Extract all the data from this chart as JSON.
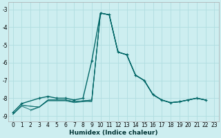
{
  "xlabel": "Humidex (Indice chaleur)",
  "bg_color": "#cdeef0",
  "grid_color": "#b0dde0",
  "line_color": "#006666",
  "xlim": [
    -0.5,
    23.5
  ],
  "ylim": [
    -9.3,
    -2.6
  ],
  "yticks": [
    -9,
    -8,
    -7,
    -6,
    -5,
    -4,
    -3
  ],
  "xticks": [
    0,
    1,
    2,
    3,
    4,
    5,
    6,
    7,
    8,
    9,
    10,
    11,
    12,
    13,
    14,
    15,
    16,
    17,
    18,
    19,
    20,
    21,
    22,
    23
  ],
  "series": [
    {
      "x": [
        0,
        1,
        3,
        4,
        5,
        6,
        7,
        8,
        9,
        10,
        11,
        12,
        13,
        14,
        15,
        16,
        17,
        18,
        19,
        20,
        21,
        22
      ],
      "y": [
        -8.8,
        -8.3,
        -8.0,
        -7.9,
        -8.0,
        -8.0,
        -8.1,
        -8.0,
        -5.9,
        -3.2,
        -3.3,
        -5.4,
        -5.55,
        -6.7,
        -7.0,
        -7.8,
        -8.1,
        -8.25,
        -8.2,
        -8.1,
        -8.0,
        -8.1
      ],
      "marker": true,
      "lw": 1.0
    },
    {
      "x": [
        0,
        1,
        3,
        4,
        5,
        6,
        7,
        8,
        9,
        10,
        11,
        12,
        13,
        14,
        15,
        16,
        17,
        18,
        19,
        20,
        21,
        22
      ],
      "y": [
        -8.9,
        -8.4,
        -8.5,
        -8.1,
        -8.1,
        -8.1,
        -8.2,
        -8.15,
        -8.1,
        -3.2,
        -3.3,
        -5.4,
        -5.55,
        -6.7,
        -7.0,
        -7.8,
        -8.1,
        -8.25,
        -8.2,
        -8.1,
        -8.0,
        -8.1
      ],
      "marker": false,
      "lw": 0.7
    },
    {
      "x": [
        2,
        3,
        4,
        5,
        6,
        7,
        8,
        9,
        10,
        11,
        12,
        13,
        14,
        15,
        16,
        17,
        18,
        19,
        20,
        21,
        22
      ],
      "y": [
        -8.7,
        -8.5,
        -8.1,
        -8.1,
        -8.1,
        -8.2,
        -8.15,
        -8.1,
        -3.2,
        -3.3,
        -5.4,
        -5.55,
        -6.7,
        -7.0,
        -7.8,
        -8.1,
        -8.25,
        -8.2,
        -8.1,
        -8.0,
        -8.1
      ],
      "marker": false,
      "lw": 0.7
    },
    {
      "x": [
        0,
        1,
        3,
        4,
        5,
        6,
        7,
        8,
        9,
        10,
        11,
        12,
        13,
        14,
        15,
        16,
        17,
        18,
        19,
        20,
        21,
        22
      ],
      "y": [
        -8.9,
        -8.4,
        -8.5,
        -8.1,
        -8.1,
        -8.1,
        -8.2,
        -8.15,
        -8.2,
        -3.2,
        -3.3,
        -5.4,
        -5.55,
        -6.7,
        -7.0,
        -7.8,
        -8.1,
        -8.25,
        -8.2,
        -8.1,
        -8.0,
        -8.1
      ],
      "marker": false,
      "lw": 0.7
    },
    {
      "x": [
        0,
        1,
        2,
        3,
        4,
        5,
        6,
        7,
        8,
        9,
        10,
        11,
        12,
        13,
        14,
        15,
        16,
        17,
        18,
        19,
        20,
        21,
        22
      ],
      "y": [
        -8.9,
        -8.45,
        -8.65,
        -8.5,
        -8.15,
        -8.15,
        -8.15,
        -8.25,
        -8.2,
        -8.15,
        -3.2,
        -3.3,
        -5.4,
        -5.55,
        -6.7,
        -7.0,
        -7.8,
        -8.1,
        -8.25,
        -8.2,
        -8.1,
        -8.0,
        -8.1
      ],
      "marker": false,
      "lw": 0.7
    }
  ],
  "xlabel_fontsize": 6.5,
  "tick_fontsize": 5.5
}
